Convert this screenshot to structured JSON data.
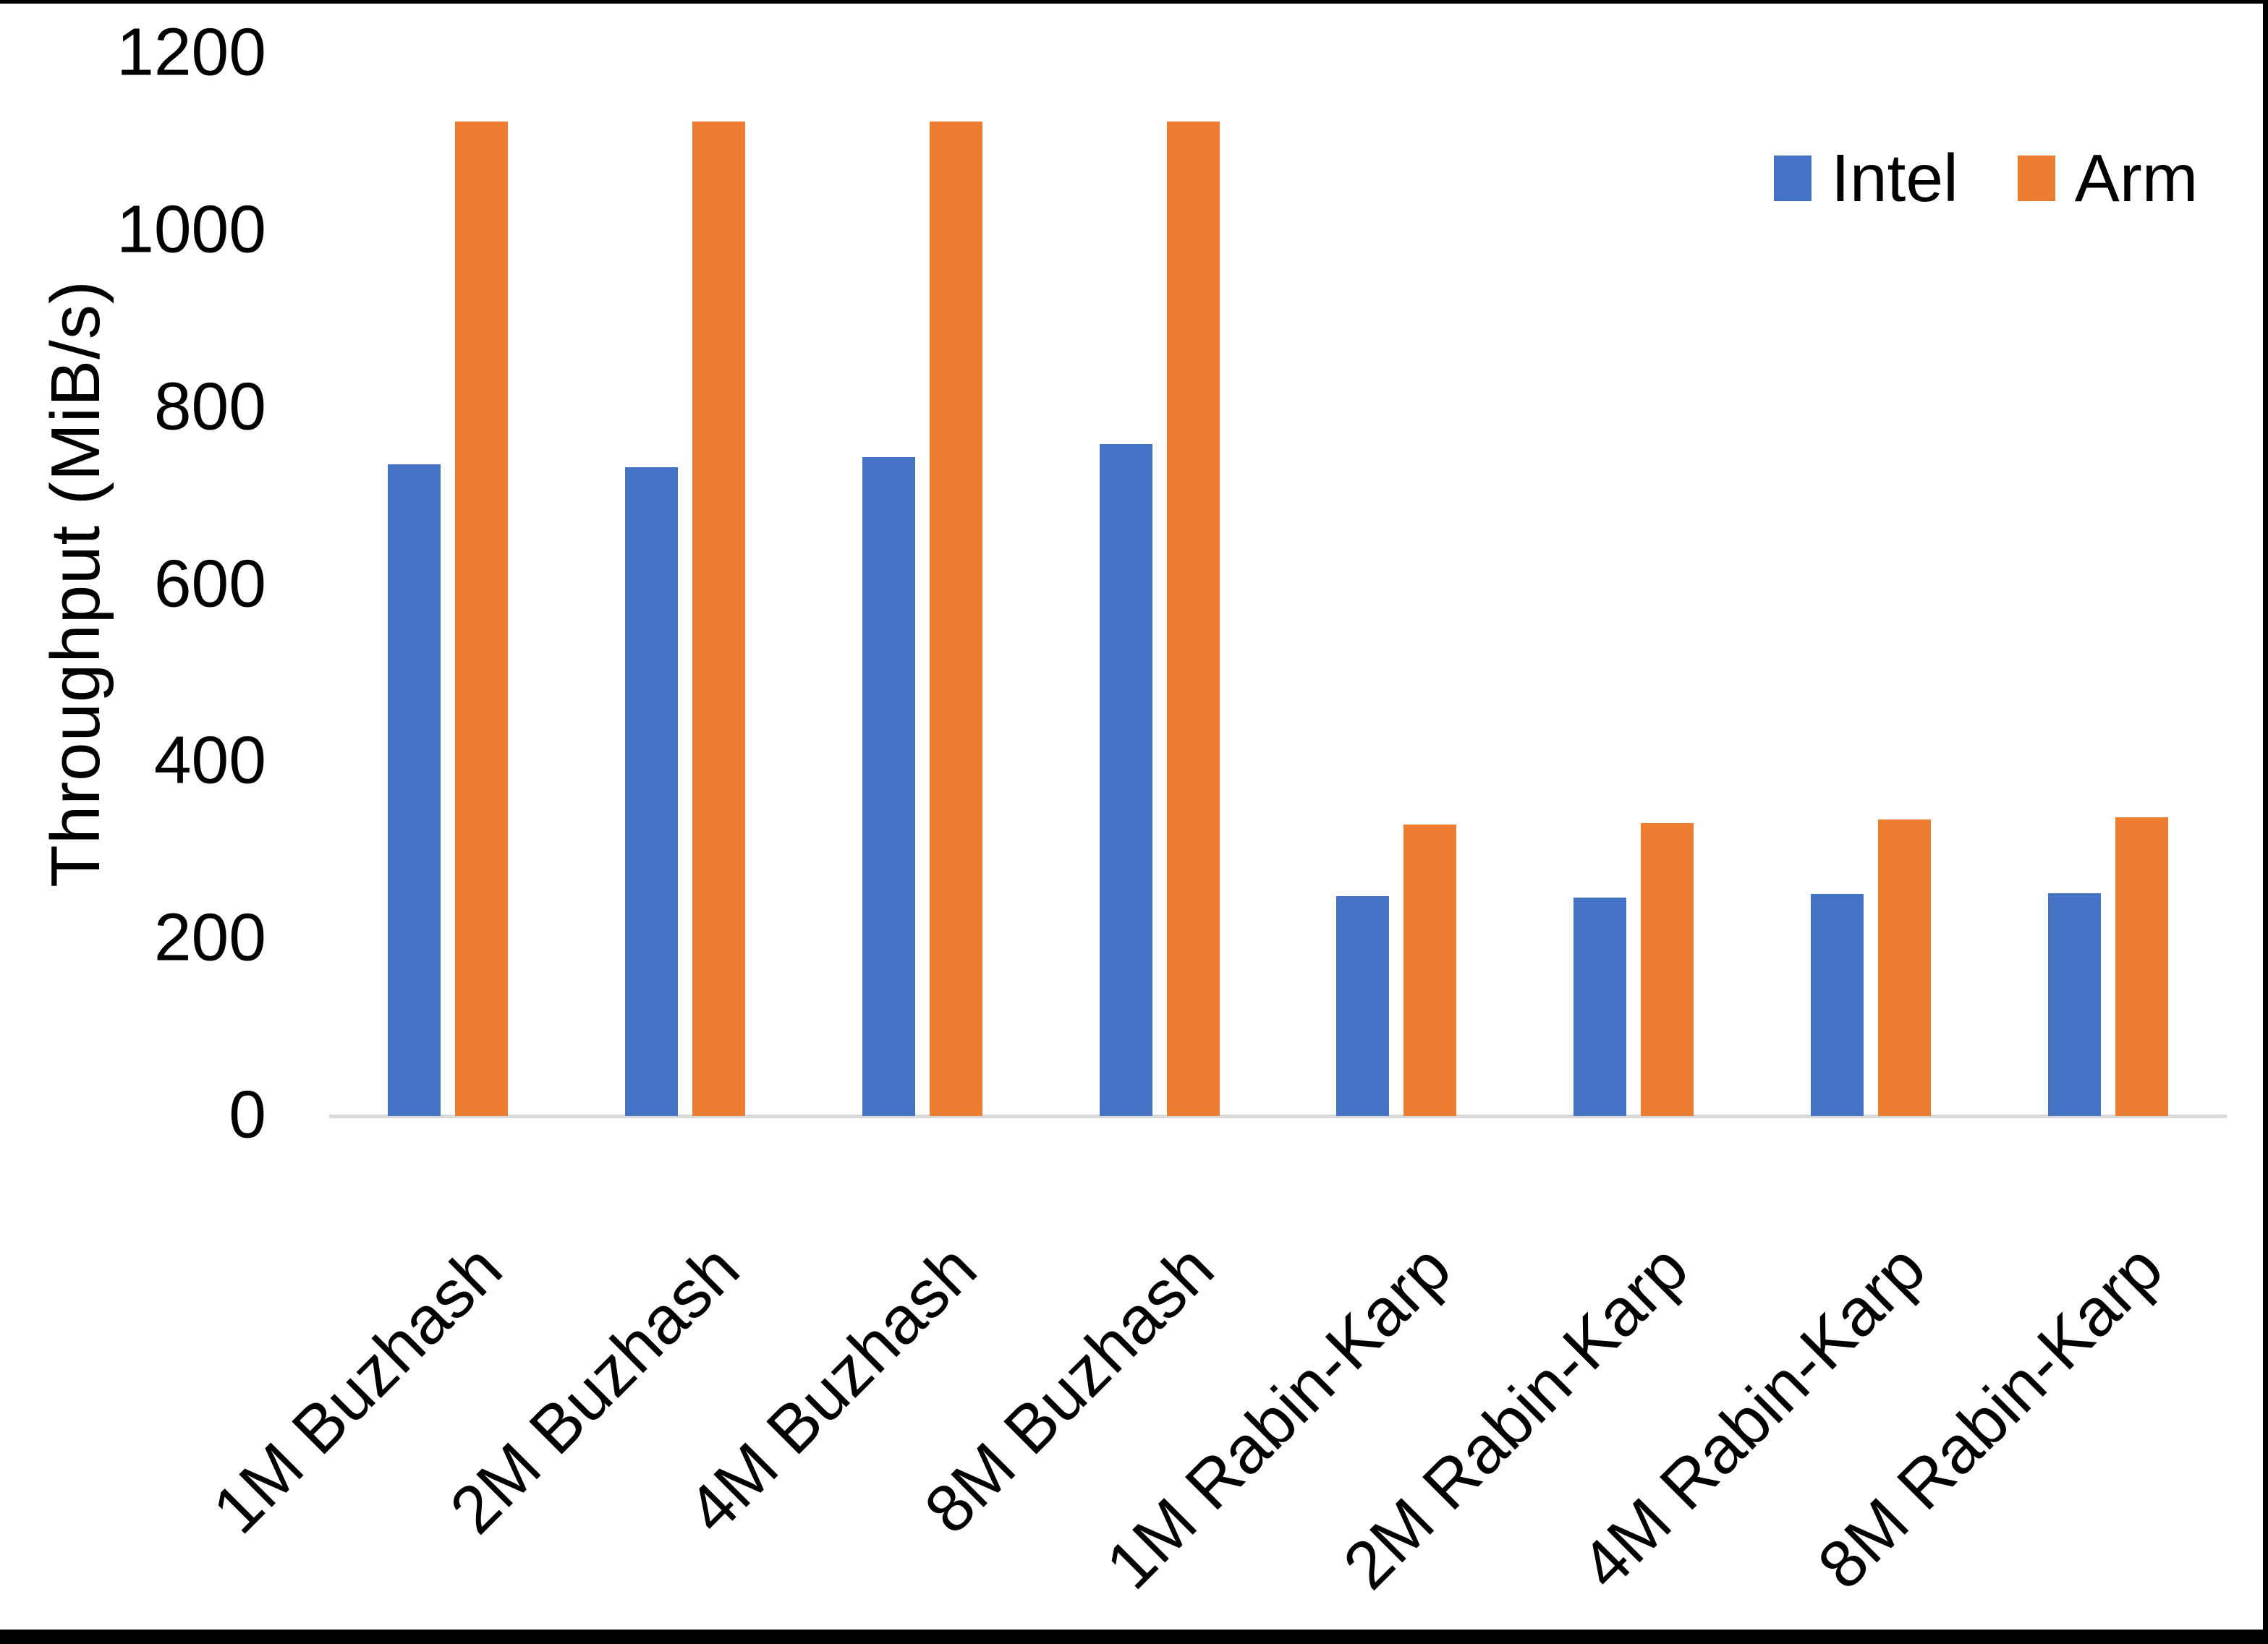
{
  "chart_data": {
    "type": "bar",
    "title": "",
    "xlabel": "",
    "ylabel": "Throughput (MiB/s)",
    "ylim": [
      0,
      1200
    ],
    "yticks": [
      0,
      200,
      400,
      600,
      800,
      1000,
      1200
    ],
    "grid": false,
    "legend_position": "top-right",
    "background": "#ffffff",
    "axis_line_color": "#d9d9d9",
    "categories": [
      "1M Buzhash",
      "2M Buzhash",
      "4M Buzhash",
      "8M Buzhash",
      "1M Rabin-Karp",
      "2M Rabin-Karp",
      "4M Rabin-Karp",
      "8M Rabin-Karp"
    ],
    "series": [
      {
        "name": "Intel",
        "color": "#4472C4",
        "values": [
          736,
          733,
          744,
          759,
          248,
          247,
          251,
          252
        ]
      },
      {
        "name": "Arm",
        "color": "#ED7D31",
        "values": [
          1123,
          1123,
          1123,
          1123,
          329,
          331,
          335,
          337
        ]
      }
    ]
  }
}
